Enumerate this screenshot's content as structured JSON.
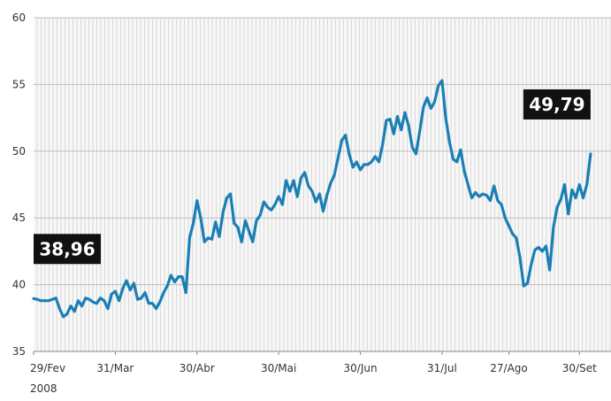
{
  "chart_data": {
    "type": "line",
    "title": "",
    "xlabel": "",
    "ylabel": "",
    "ylim": [
      35,
      60
    ],
    "y_ticks": [
      35,
      40,
      45,
      50,
      55,
      60
    ],
    "x_tick_labels": [
      "29/Fev",
      "31/Mar",
      "30/Abr",
      "30/Mai",
      "30/Jun",
      "31/Jul",
      "27/Ago",
      "30/Set"
    ],
    "x_tick_positions": [
      0,
      22,
      44,
      66,
      88,
      110,
      128,
      147
    ],
    "year_label": "2008",
    "grid": true,
    "series": [
      {
        "color": "#1a7fb5",
        "x": [
          0,
          1,
          2,
          3,
          4,
          5,
          6,
          7,
          8,
          9,
          10,
          11,
          12,
          13,
          14,
          15,
          16,
          17,
          18,
          19,
          20,
          21,
          22,
          23,
          24,
          25,
          26,
          27,
          28,
          29,
          30,
          31,
          32,
          33,
          34,
          35,
          36,
          37,
          38,
          39,
          40,
          41,
          42,
          43,
          44,
          45,
          46,
          47,
          48,
          49,
          50,
          51,
          52,
          53,
          54,
          55,
          56,
          57,
          58,
          59,
          60,
          61,
          62,
          63,
          64,
          65,
          66,
          67,
          68,
          69,
          70,
          71,
          72,
          73,
          74,
          75,
          76,
          77,
          78,
          79,
          80,
          81,
          82,
          83,
          84,
          85,
          86,
          87,
          88,
          89,
          90,
          91,
          92,
          93,
          94,
          95,
          96,
          97,
          98,
          99,
          100,
          101,
          102,
          103,
          104,
          105,
          106,
          107,
          108,
          109,
          110,
          111,
          112,
          113,
          114,
          115,
          116,
          117,
          118,
          119,
          120,
          121,
          122,
          123,
          124,
          125,
          126,
          127,
          128,
          129,
          130,
          131,
          132,
          133,
          134,
          135,
          136,
          137,
          138,
          139,
          140,
          141,
          142,
          143,
          144,
          145,
          146,
          147,
          148,
          149,
          150
        ],
        "y": [
          38.96,
          38.9,
          38.8,
          38.8,
          38.8,
          38.9,
          39.0,
          38.2,
          37.6,
          37.8,
          38.4,
          38.0,
          38.8,
          38.4,
          39.0,
          38.9,
          38.7,
          38.6,
          39.0,
          38.8,
          38.2,
          39.3,
          39.5,
          38.8,
          39.7,
          40.3,
          39.6,
          40.1,
          38.9,
          39.0,
          39.4,
          38.6,
          38.6,
          38.2,
          38.7,
          39.4,
          39.9,
          40.7,
          40.2,
          40.6,
          40.6,
          39.4,
          43.5,
          44.6,
          46.3,
          45.0,
          43.2,
          43.5,
          43.4,
          44.7,
          43.6,
          45.4,
          46.5,
          46.8,
          44.6,
          44.3,
          43.2,
          44.8,
          44.0,
          43.2,
          44.8,
          45.2,
          46.2,
          45.8,
          45.6,
          46.0,
          46.6,
          46.0,
          47.8,
          47.0,
          47.8,
          46.6,
          48.0,
          48.4,
          47.4,
          47.0,
          46.2,
          46.8,
          45.5,
          46.7,
          47.6,
          48.2,
          49.5,
          50.8,
          51.2,
          49.8,
          48.8,
          49.2,
          48.6,
          49.0,
          49.0,
          49.2,
          49.6,
          49.2,
          50.5,
          52.3,
          52.4,
          51.3,
          52.6,
          51.6,
          52.9,
          51.9,
          50.3,
          49.8,
          51.5,
          53.3,
          54.0,
          53.2,
          53.7,
          54.9,
          55.3,
          52.5,
          50.7,
          49.4,
          49.2,
          50.1,
          48.5,
          47.5,
          46.5,
          46.9,
          46.6,
          46.8,
          46.7,
          46.3,
          47.4,
          46.3,
          46.0,
          45.0,
          44.4,
          43.8,
          43.5,
          42.0,
          39.9,
          40.1,
          41.5,
          42.6,
          42.8,
          42.5,
          42.9,
          41.1,
          44.3,
          45.8,
          46.4,
          47.5,
          45.3,
          47.1,
          46.5,
          47.5,
          46.5,
          47.5,
          49.79
        ]
      }
    ],
    "annotations": [
      {
        "text": "38,96",
        "x": 0,
        "y": 38.96,
        "placement": "above-left"
      },
      {
        "text": "49,79",
        "x": 150,
        "y": 49.79,
        "placement": "above-right"
      }
    ]
  }
}
